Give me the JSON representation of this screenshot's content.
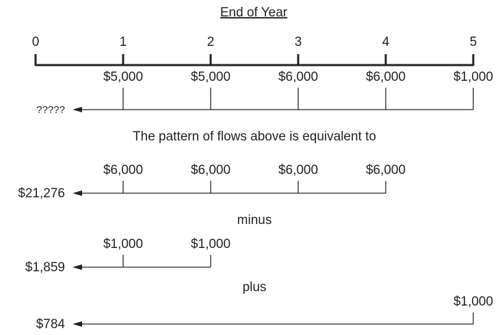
{
  "header": {
    "title": "End of Year"
  },
  "years": [
    0,
    1,
    2,
    3,
    4,
    5
  ],
  "rows": [
    {
      "label": "?????",
      "flows": [
        "$5,000",
        "$5,000",
        "$6,000",
        "$6,000",
        "$1,000"
      ]
    },
    {
      "label": "$21,276",
      "flows": [
        "$6,000",
        "$6,000",
        "$6,000",
        "$6,000"
      ]
    },
    {
      "label": "$1,859",
      "flows": [
        "$1,000",
        "$1,000"
      ]
    },
    {
      "label": "$784",
      "flows": [
        "$1,000"
      ]
    }
  ],
  "captions": [
    "The pattern of flows above is equivalent to",
    "minus",
    "plus"
  ]
}
